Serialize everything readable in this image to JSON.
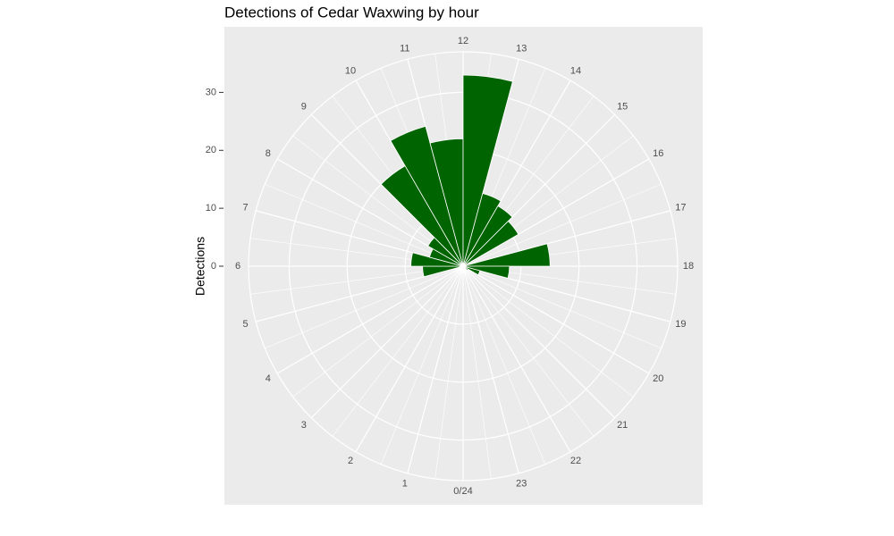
{
  "chart_data": {
    "type": "polar_bar",
    "title": "Detections of Cedar Waxwing by hour",
    "y_label": "Detections",
    "categories": [
      "0/24",
      "1",
      "2",
      "3",
      "4",
      "5",
      "6",
      "7",
      "8",
      "9",
      "10",
      "11",
      "12",
      "13",
      "14",
      "15",
      "16",
      "17",
      "18",
      "19",
      "20",
      "21",
      "22",
      "23"
    ],
    "values": [
      0,
      0,
      0,
      0,
      0,
      7,
      9,
      6,
      7,
      20,
      25,
      22,
      33,
      13,
      12,
      11,
      1,
      15,
      8,
      3,
      1,
      0,
      0,
      0
    ],
    "color": "#006400",
    "ylim": [
      0,
      37
    ],
    "yticks": [
      0,
      10,
      20,
      30
    ],
    "grid": true
  }
}
